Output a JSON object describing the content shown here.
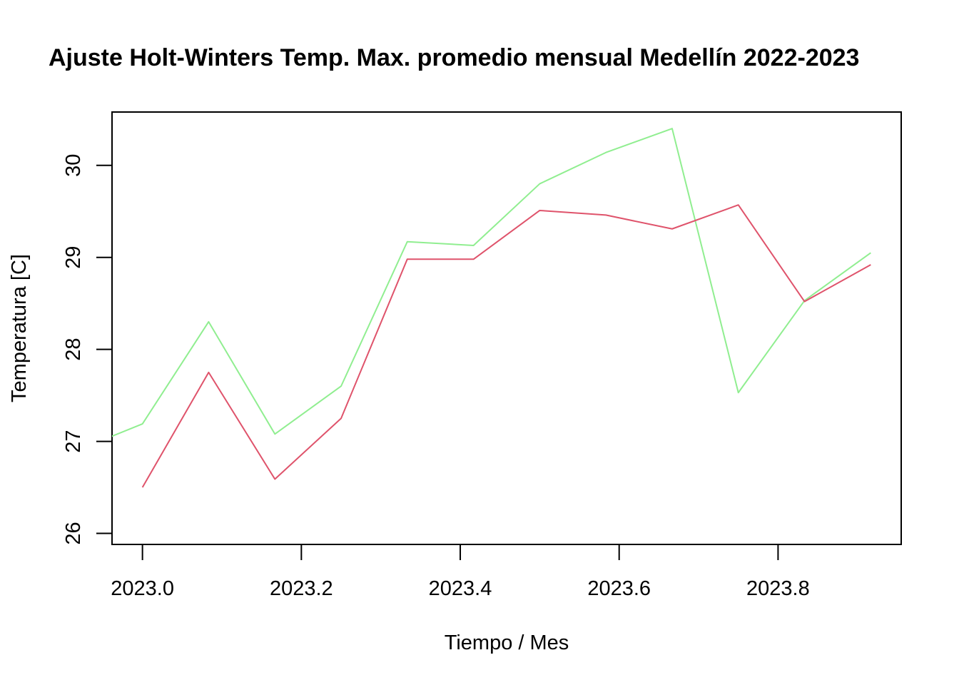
{
  "chart_data": {
    "type": "line",
    "title": "Ajuste Holt-Winters Temp. Max. promedio mensual Medellín 2022-2023",
    "xlabel": "Tiempo / Mes",
    "ylabel": "Temperatura [C]",
    "xlim": [
      2022.9617,
      2023.955
    ],
    "ylim": [
      25.88,
      30.58
    ],
    "x_ticks": [
      2023.0,
      2023.2,
      2023.4,
      2023.6,
      2023.8
    ],
    "x_tick_labels": [
      "2023.0",
      "2023.2",
      "2023.4",
      "2023.6",
      "2023.8"
    ],
    "y_ticks": [
      26,
      27,
      28,
      29,
      30
    ],
    "y_tick_labels": [
      "26",
      "27",
      "28",
      "29",
      "30"
    ],
    "grid": false,
    "series": [
      {
        "color": "#90EE90",
        "x": [
          2022.9167,
          2023.0,
          2023.0833,
          2023.1667,
          2023.25,
          2023.3333,
          2023.4167,
          2023.5,
          2023.5833,
          2023.6667,
          2023.75,
          2023.8333,
          2023.9167
        ],
        "values": [
          26.9,
          27.19,
          28.3,
          27.08,
          27.6,
          29.17,
          29.13,
          29.8,
          30.14,
          30.4,
          27.53,
          28.53,
          29.05
        ]
      },
      {
        "color": "#DF536B",
        "x": [
          2023.0,
          2023.0833,
          2023.1667,
          2023.25,
          2023.3333,
          2023.4167,
          2023.5,
          2023.5833,
          2023.6667,
          2023.75,
          2023.8333,
          2023.9167
        ],
        "values": [
          26.5,
          27.75,
          26.59,
          27.25,
          28.98,
          28.98,
          29.51,
          29.46,
          29.31,
          29.57,
          28.52,
          28.92
        ]
      }
    ]
  }
}
